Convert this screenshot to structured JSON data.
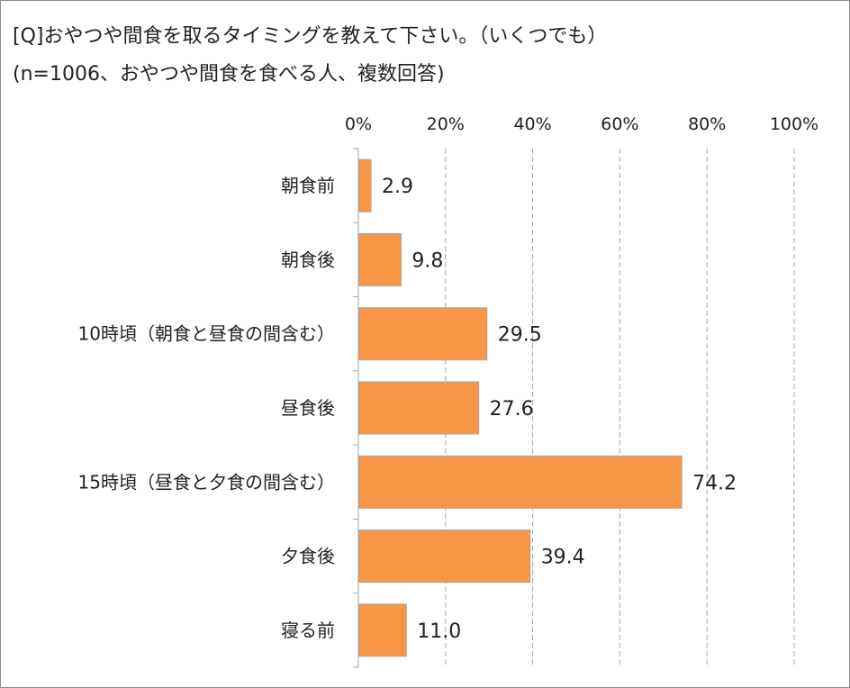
{
  "title_line1": "[Q]おやつや間食を取るタイミングを教えて下さい。（いくつでも）",
  "title_line2": "(n=1006、おやつや間食を食べる人、複数回答)",
  "colors": {
    "bar": "#f79646",
    "bar_border": "#a6a6a6",
    "grid": "#a6a6a6",
    "axis": "#a6a6a6"
  },
  "chart_data": {
    "type": "bar",
    "orientation": "horizontal",
    "title": "[Q]おやつや間食を取るタイミングを教えて下さい。（いくつでも）",
    "subtitle": "(n=1006、おやつや間食を食べる人、複数回答)",
    "categories": [
      "朝食前",
      "朝食後",
      "10時頃（朝食と昼食の間含む）",
      "昼食後",
      "15時頃（昼食と夕食の間含む）",
      "夕食後",
      "寝る前"
    ],
    "values": [
      2.9,
      9.8,
      29.5,
      27.6,
      74.2,
      39.4,
      11.0
    ],
    "value_labels": [
      "2.9",
      "9.8",
      "29.5",
      "27.6",
      "74.2",
      "39.4",
      "11.0"
    ],
    "xlim": [
      0,
      100
    ],
    "x_ticks": [
      0,
      20,
      40,
      60,
      80,
      100
    ],
    "x_tick_labels": [
      "0%",
      "20%",
      "40%",
      "60%",
      "80%",
      "100%"
    ],
    "grid": true,
    "grid_style": "dashed",
    "xaxis_position": "top"
  }
}
